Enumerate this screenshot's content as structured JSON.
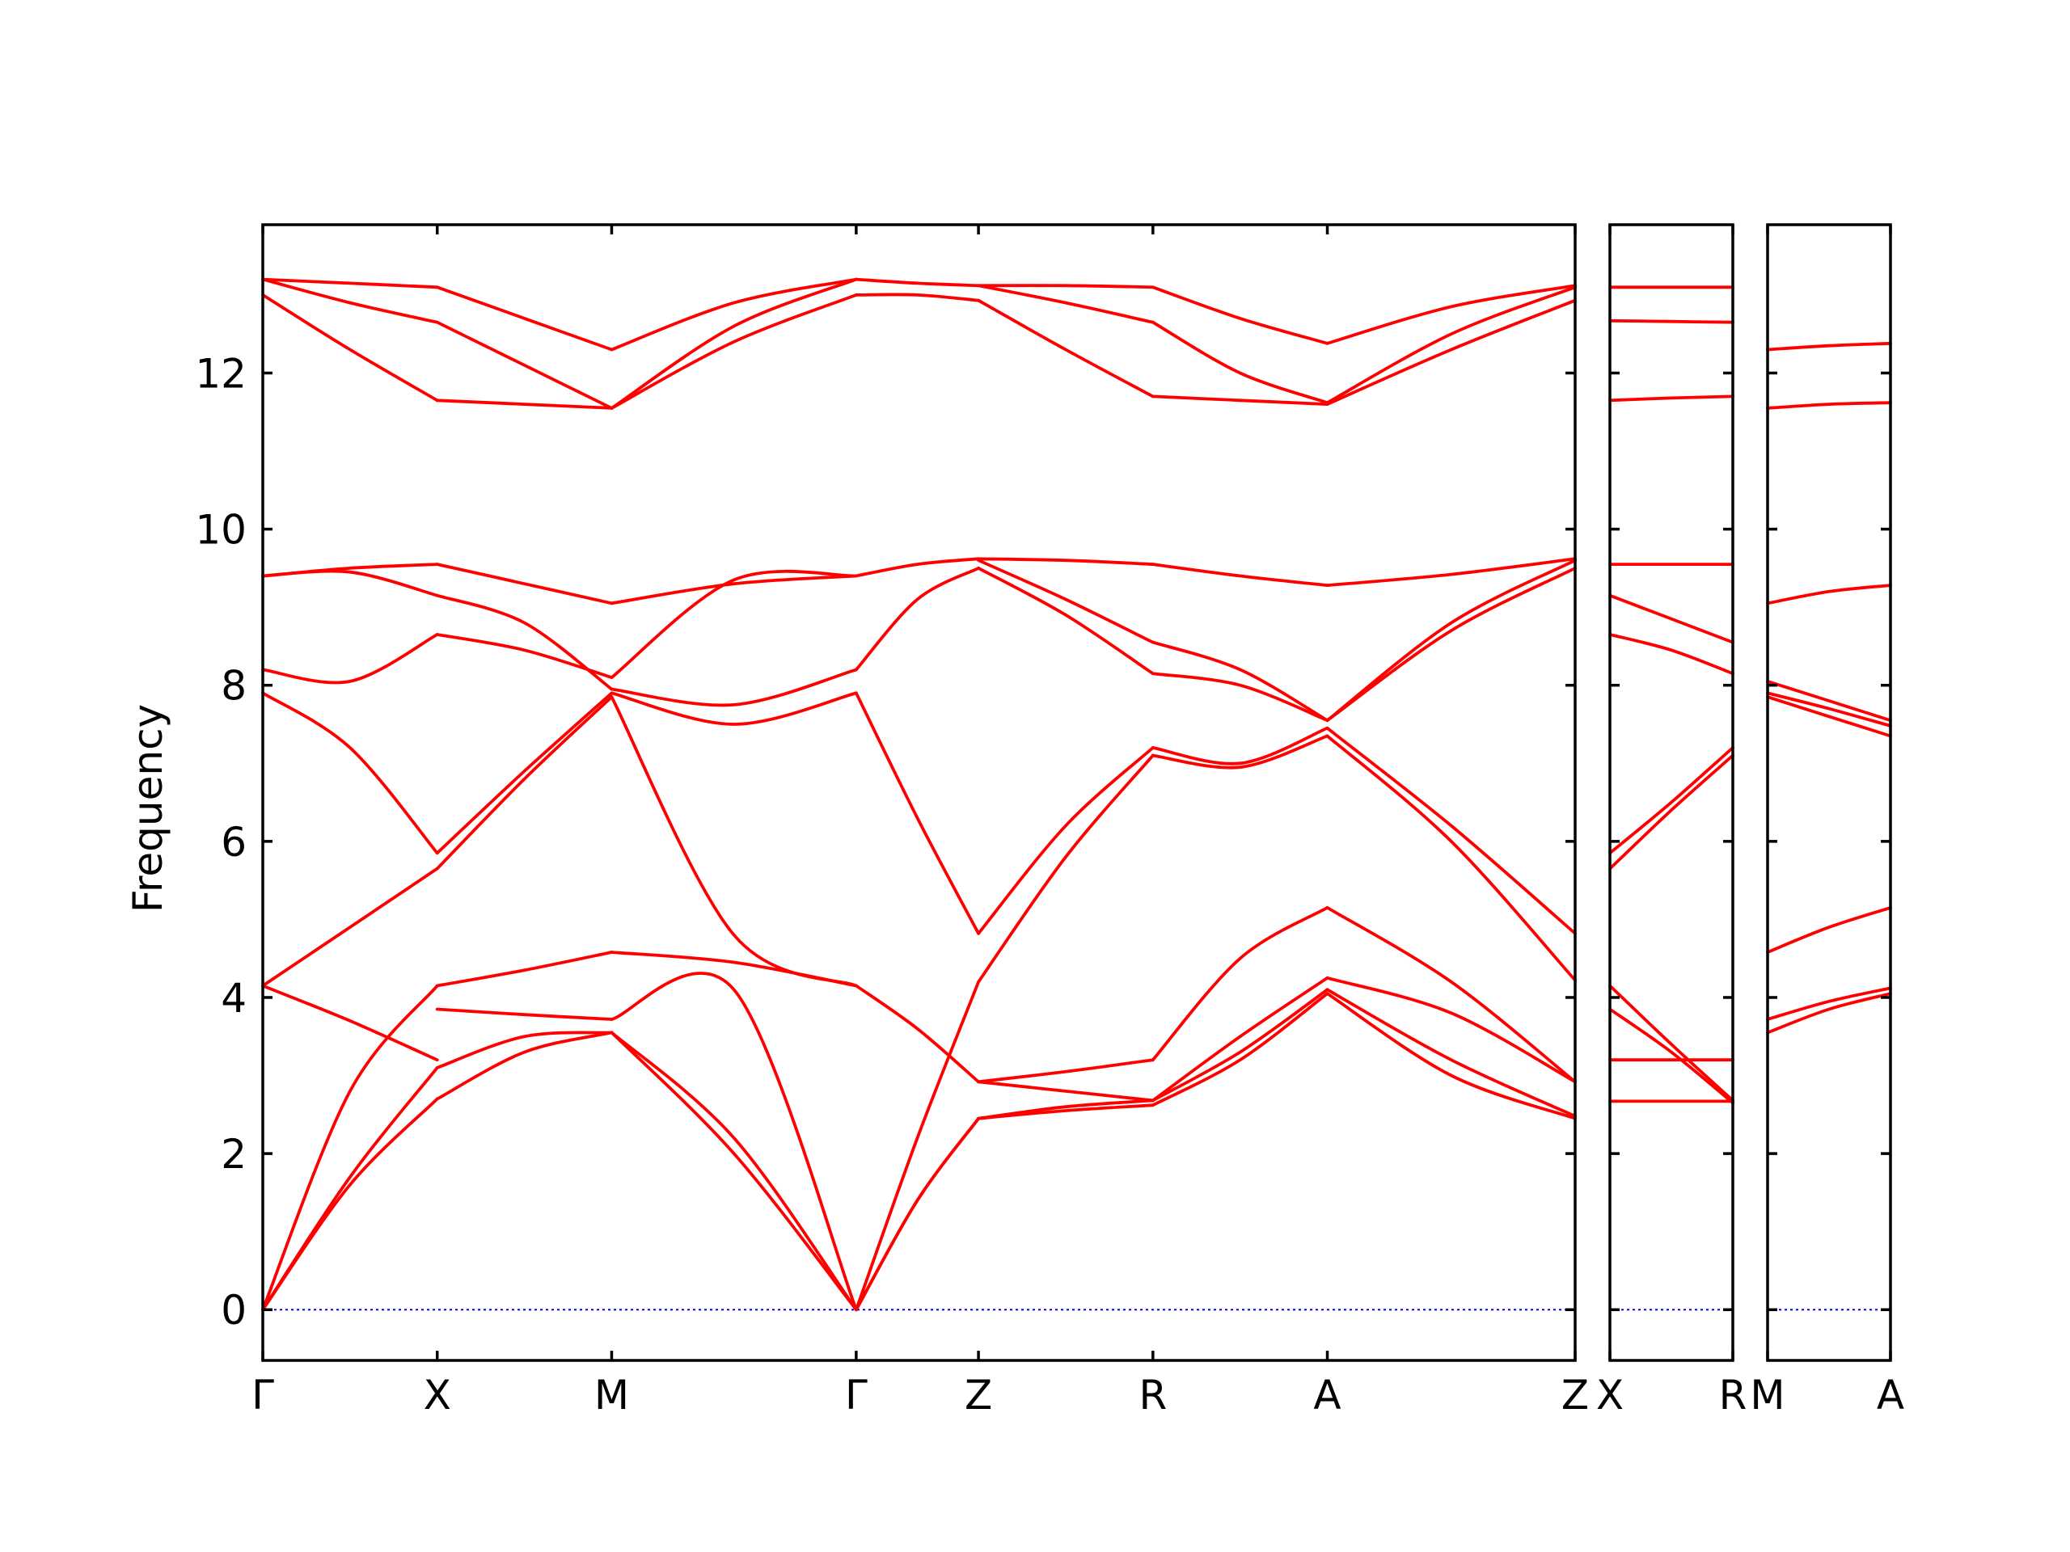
{
  "chart_data": {
    "type": "line",
    "ylabel": "Frequency",
    "ylim": [
      -0.65,
      13.9
    ],
    "yticks": [
      0,
      2,
      4,
      6,
      8,
      10,
      12
    ],
    "grid": false,
    "legend": "none",
    "colors": {
      "bands": "#ff0000",
      "zero_line": "#0000ff",
      "axes": "#000000"
    },
    "panels": [
      {
        "name": "panel-main",
        "xticks": [
          "Γ",
          "X",
          "M",
          "Γ",
          "Z",
          "R",
          "A",
          "Z"
        ],
        "segments": [
          {
            "from": "Γ",
            "to": "X",
            "bands": [
              [
                0,
                1.6,
                2.7
              ],
              [
                0,
                1.7,
                3.1
              ],
              [
                0,
                2.8,
                4.15
              ],
              [
                4.15,
                3.7,
                3.2
              ],
              [
                4.15,
                4.9,
                5.65
              ],
              [
                7.9,
                7.2,
                5.85
              ],
              [
                8.2,
                8.05,
                8.65
              ],
              [
                9.4,
                9.45,
                9.15
              ],
              [
                9.4,
                9.5,
                9.55
              ],
              [
                13.0,
                12.3,
                11.65
              ],
              [
                13.2,
                12.9,
                12.65
              ],
              [
                13.2,
                13.15,
                13.1
              ]
            ]
          },
          {
            "from": "X",
            "to": "M",
            "bands": [
              [
                2.7,
                3.3,
                3.55
              ],
              [
                3.1,
                3.5,
                3.55
              ],
              [
                3.85,
                3.78,
                3.72
              ],
              [
                4.15,
                4.35,
                4.58
              ],
              [
                5.65,
                6.8,
                7.85
              ],
              [
                5.85,
                6.9,
                7.9
              ],
              [
                8.65,
                8.45,
                8.1
              ],
              [
                9.15,
                8.8,
                7.95
              ],
              [
                9.55,
                9.3,
                9.05
              ],
              [
                11.65,
                11.6,
                11.55
              ],
              [
                12.65,
                12.1,
                11.55
              ],
              [
                13.1,
                12.7,
                12.3
              ]
            ]
          },
          {
            "from": "M",
            "to": "Γ",
            "bands": [
              [
                3.55,
                2.0,
                0
              ],
              [
                3.55,
                2.2,
                0
              ],
              [
                3.72,
                4.1,
                0
              ],
              [
                4.58,
                4.45,
                4.15
              ],
              [
                7.85,
                4.8,
                4.15
              ],
              [
                7.9,
                7.5,
                7.9
              ],
              [
                7.95,
                7.75,
                8.2
              ],
              [
                8.1,
                9.35,
                9.4
              ],
              [
                9.05,
                9.3,
                9.4
              ],
              [
                11.55,
                12.4,
                13.0
              ],
              [
                11.55,
                12.6,
                13.2
              ],
              [
                12.3,
                12.9,
                13.2
              ]
            ]
          },
          {
            "from": "Γ",
            "to": "Z",
            "bands": [
              [
                0,
                1.4,
                2.45
              ],
              [
                0,
                1.4,
                2.45
              ],
              [
                0,
                2.2,
                4.2
              ],
              [
                4.15,
                3.6,
                2.92
              ],
              [
                7.9,
                6.3,
                4.82
              ],
              [
                8.2,
                9.1,
                9.5
              ],
              [
                9.4,
                9.55,
                9.62
              ],
              [
                13.0,
                13.0,
                12.93
              ],
              [
                13.2,
                13.15,
                13.12
              ]
            ]
          },
          {
            "from": "Z",
            "to": "R",
            "bands": [
              [
                2.45,
                2.55,
                2.62
              ],
              [
                2.45,
                2.6,
                2.68
              ],
              [
                2.92,
                2.8,
                2.68
              ],
              [
                2.92,
                3.05,
                3.2
              ],
              [
                4.2,
                5.8,
                7.1
              ],
              [
                4.82,
                6.2,
                7.2
              ],
              [
                9.5,
                8.9,
                8.15
              ],
              [
                9.6,
                9.1,
                8.55
              ],
              [
                9.62,
                9.6,
                9.55
              ],
              [
                12.93,
                12.3,
                11.7
              ],
              [
                13.12,
                12.9,
                12.65
              ],
              [
                13.12,
                13.12,
                13.1
              ]
            ]
          },
          {
            "from": "R",
            "to": "A",
            "bands": [
              [
                2.62,
                3.2,
                4.05
              ],
              [
                2.68,
                3.3,
                4.1
              ],
              [
                2.68,
                3.5,
                4.25
              ],
              [
                3.2,
                4.5,
                5.15
              ],
              [
                7.1,
                6.95,
                7.35
              ],
              [
                7.2,
                7.0,
                7.45
              ],
              [
                8.15,
                8.0,
                7.55
              ],
              [
                8.55,
                8.2,
                7.55
              ],
              [
                9.55,
                9.4,
                9.28
              ],
              [
                11.7,
                11.65,
                11.6
              ],
              [
                12.65,
                12.0,
                11.62
              ],
              [
                13.1,
                12.7,
                12.38
              ]
            ]
          },
          {
            "from": "A",
            "to": "Z",
            "bands": [
              [
                4.05,
                3.0,
                2.45
              ],
              [
                4.1,
                3.2,
                2.48
              ],
              [
                4.25,
                3.8,
                2.92
              ],
              [
                5.15,
                4.2,
                2.92
              ],
              [
                7.35,
                6.0,
                4.22
              ],
              [
                7.45,
                6.2,
                4.82
              ],
              [
                7.55,
                8.7,
                9.5
              ],
              [
                7.55,
                8.8,
                9.6
              ],
              [
                9.28,
                9.42,
                9.62
              ],
              [
                11.6,
                12.3,
                12.93
              ],
              [
                11.62,
                12.5,
                13.1
              ],
              [
                12.38,
                12.85,
                13.12
              ]
            ]
          }
        ]
      },
      {
        "name": "panel-xr",
        "xticks": [
          "X",
          "R"
        ],
        "segments": [
          {
            "from": "X",
            "to": "R",
            "bands": [
              [
                2.67,
                2.67,
                2.67
              ],
              [
                3.2,
                3.2,
                3.2
              ],
              [
                3.85,
                3.3,
                2.65
              ],
              [
                4.15,
                3.4,
                2.68
              ],
              [
                5.65,
                6.4,
                7.1
              ],
              [
                5.85,
                6.5,
                7.2
              ],
              [
                8.65,
                8.45,
                8.15
              ],
              [
                9.15,
                8.85,
                8.55
              ],
              [
                9.55,
                9.55,
                9.55
              ],
              [
                11.65,
                11.68,
                11.7
              ],
              [
                12.67,
                12.66,
                12.65
              ],
              [
                13.1,
                13.1,
                13.1
              ]
            ]
          }
        ]
      },
      {
        "name": "panel-ma",
        "xticks": [
          "M",
          "A"
        ],
        "segments": [
          {
            "from": "M",
            "to": "A",
            "bands": [
              [
                3.55,
                3.85,
                4.05
              ],
              [
                3.72,
                3.95,
                4.12
              ],
              [
                4.58,
                4.9,
                5.15
              ],
              [
                7.85,
                7.6,
                7.35
              ],
              [
                7.9,
                7.7,
                7.48
              ],
              [
                8.05,
                7.8,
                7.55
              ],
              [
                9.05,
                9.2,
                9.28
              ],
              [
                11.55,
                11.6,
                11.62
              ],
              [
                12.3,
                12.35,
                12.38
              ]
            ]
          }
        ]
      }
    ]
  }
}
